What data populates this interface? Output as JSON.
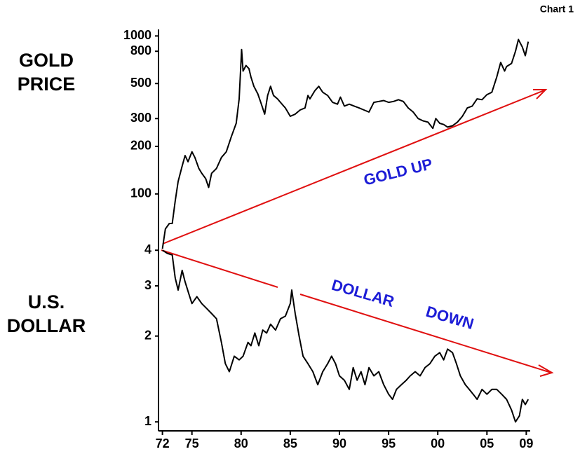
{
  "page_label": "Chart 1",
  "chart_data": [
    {
      "type": "line",
      "label": [
        "GOLD",
        "PRICE"
      ],
      "annotations": [
        "GOLD UP"
      ],
      "log_scale": true,
      "color": "#000000",
      "xlim": [
        1971.6,
        2009.4
      ],
      "ylim": [
        45,
        1100
      ],
      "yticks": [
        100,
        200,
        300,
        500,
        800,
        1000
      ],
      "x": [
        1972.0,
        1972.3,
        1972.7,
        1973.0,
        1973.3,
        1973.6,
        1974.0,
        1974.3,
        1974.6,
        1975.0,
        1975.3,
        1975.7,
        1976.0,
        1976.4,
        1976.7,
        1977.0,
        1977.5,
        1978.0,
        1978.5,
        1979.0,
        1979.5,
        1979.8,
        1980.05,
        1980.2,
        1980.5,
        1980.8,
        1981.0,
        1981.3,
        1981.7,
        1982.0,
        1982.4,
        1982.7,
        1983.0,
        1983.3,
        1983.7,
        1984.0,
        1984.5,
        1985.0,
        1985.5,
        1986.0,
        1986.5,
        1986.8,
        1987.0,
        1987.5,
        1987.9,
        1988.3,
        1988.8,
        1989.3,
        1989.8,
        1990.1,
        1990.5,
        1991.0,
        1991.5,
        1992.0,
        1992.5,
        1993.0,
        1993.5,
        1994.0,
        1994.5,
        1995.0,
        1995.5,
        1996.0,
        1996.5,
        1997.0,
        1997.5,
        1998.0,
        1998.5,
        1999.0,
        1999.5,
        1999.8,
        2000.2,
        2000.6,
        2001.0,
        2001.5,
        2002.0,
        2002.5,
        2003.0,
        2003.5,
        2004.0,
        2004.5,
        2005.0,
        2005.5,
        2006.0,
        2006.4,
        2006.8,
        2007.0,
        2007.5,
        2007.9,
        2008.2,
        2008.6,
        2008.9,
        2009.2
      ],
      "values": [
        45,
        60,
        65,
        65,
        90,
        120,
        150,
        175,
        160,
        185,
        170,
        145,
        135,
        125,
        110,
        135,
        145,
        170,
        185,
        230,
        280,
        400,
        820,
        600,
        650,
        620,
        550,
        480,
        430,
        380,
        320,
        420,
        480,
        420,
        400,
        380,
        350,
        310,
        320,
        340,
        350,
        420,
        400,
        450,
        480,
        440,
        420,
        380,
        370,
        410,
        360,
        370,
        360,
        350,
        340,
        330,
        380,
        385,
        390,
        380,
        385,
        395,
        385,
        350,
        330,
        300,
        290,
        285,
        260,
        300,
        280,
        275,
        265,
        270,
        285,
        310,
        350,
        360,
        400,
        395,
        425,
        440,
        550,
        680,
        600,
        640,
        670,
        800,
        950,
        850,
        750,
        920
      ]
    },
    {
      "type": "line",
      "label": [
        "U.S.",
        "DOLLAR"
      ],
      "annotations": [
        "DOLLAR",
        "DOWN"
      ],
      "log_scale": true,
      "color": "#000000",
      "xlim": [
        1971.6,
        2009.4
      ],
      "ylim": [
        0.93,
        4.05
      ],
      "yticks": [
        1,
        2,
        3,
        4
      ],
      "xticks": [
        {
          "value": 1972,
          "label": "72"
        },
        {
          "value": 1975,
          "label": "75"
        },
        {
          "value": 1980,
          "label": "80"
        },
        {
          "value": 1985,
          "label": "85"
        },
        {
          "value": 1990,
          "label": "90"
        },
        {
          "value": 1995,
          "label": "95"
        },
        {
          "value": 2000,
          "label": "00"
        },
        {
          "value": 2005,
          "label": "05"
        },
        {
          "value": 2009,
          "label": "09"
        }
      ],
      "x": [
        1972.0,
        1972.5,
        1973.0,
        1973.3,
        1973.6,
        1974.0,
        1974.3,
        1974.7,
        1975.0,
        1975.5,
        1976.0,
        1976.5,
        1977.0,
        1977.5,
        1978.0,
        1978.4,
        1978.8,
        1979.3,
        1979.8,
        1980.2,
        1980.7,
        1981.0,
        1981.4,
        1981.8,
        1982.2,
        1982.6,
        1983.0,
        1983.5,
        1984.0,
        1984.5,
        1985.0,
        1985.15,
        1985.5,
        1985.9,
        1986.3,
        1986.8,
        1987.3,
        1987.8,
        1988.3,
        1988.8,
        1989.2,
        1989.6,
        1990.0,
        1990.5,
        1991.0,
        1991.4,
        1991.8,
        1992.2,
        1992.6,
        1993.0,
        1993.5,
        1994.0,
        1994.5,
        1995.0,
        1995.4,
        1995.8,
        1996.3,
        1996.8,
        1997.2,
        1997.7,
        1998.2,
        1998.7,
        1999.2,
        1999.7,
        2000.2,
        2000.6,
        2001.0,
        2001.5,
        2001.9,
        2002.3,
        2002.8,
        2003.2,
        2003.6,
        2004.0,
        2004.5,
        2005.0,
        2005.5,
        2006.0,
        2006.5,
        2007.0,
        2007.5,
        2007.9,
        2008.3,
        2008.6,
        2008.9,
        2009.2
      ],
      "values": [
        4.0,
        3.9,
        3.85,
        3.2,
        2.9,
        3.4,
        3.1,
        2.8,
        2.6,
        2.75,
        2.6,
        2.5,
        2.4,
        2.3,
        1.9,
        1.6,
        1.5,
        1.7,
        1.65,
        1.7,
        1.9,
        1.85,
        2.05,
        1.85,
        2.1,
        2.05,
        2.2,
        2.1,
        2.3,
        2.35,
        2.6,
        2.9,
        2.4,
        2.0,
        1.7,
        1.6,
        1.5,
        1.35,
        1.5,
        1.6,
        1.7,
        1.6,
        1.45,
        1.4,
        1.3,
        1.55,
        1.4,
        1.5,
        1.35,
        1.55,
        1.45,
        1.5,
        1.35,
        1.25,
        1.2,
        1.3,
        1.35,
        1.4,
        1.45,
        1.5,
        1.45,
        1.55,
        1.6,
        1.7,
        1.75,
        1.65,
        1.8,
        1.75,
        1.6,
        1.45,
        1.35,
        1.3,
        1.25,
        1.2,
        1.3,
        1.25,
        1.3,
        1.3,
        1.25,
        1.2,
        1.1,
        1.0,
        1.05,
        1.2,
        1.15,
        1.2
      ]
    }
  ]
}
